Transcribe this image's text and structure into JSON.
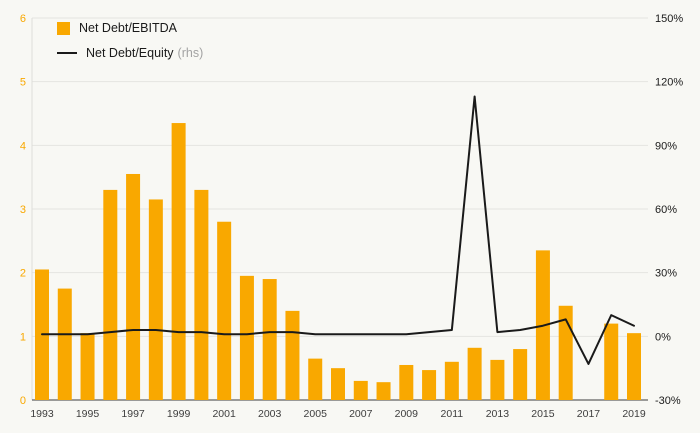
{
  "chart_data": {
    "type": "combo",
    "title": "",
    "background": "#F8F8F4",
    "legend_position": "top-left",
    "grid": "horizontal",
    "categories": [
      1993,
      1994,
      1995,
      1996,
      1997,
      1998,
      1999,
      2000,
      2001,
      2002,
      2003,
      2004,
      2005,
      2006,
      2007,
      2008,
      2009,
      2010,
      2011,
      2012,
      2013,
      2014,
      2015,
      2016,
      2017,
      2018,
      2019
    ],
    "x_tick_labels": [
      "1993",
      "1995",
      "1997",
      "1999",
      "2001",
      "2003",
      "2005",
      "2007",
      "2009",
      "2011",
      "2013",
      "2015",
      "2017",
      "2019"
    ],
    "series": [
      {
        "name": "Net Debt/EBITDA",
        "type": "bar",
        "axis": "left",
        "color": "#F9A800",
        "values": [
          2.05,
          1.75,
          1.05,
          3.3,
          3.55,
          3.15,
          4.35,
          3.3,
          2.8,
          1.95,
          1.9,
          1.4,
          0.65,
          0.5,
          0.3,
          0.28,
          0.55,
          0.47,
          0.6,
          0.82,
          0.63,
          0.8,
          2.35,
          1.48,
          null,
          1.2,
          1.05
        ]
      },
      {
        "name": "Net Debt/Equity",
        "axis_note": "(rhs)",
        "type": "line",
        "axis": "right",
        "color": "#1A1A1A",
        "unit": "%",
        "values": [
          1,
          1,
          1,
          2,
          3,
          3,
          2,
          2,
          1,
          1,
          2,
          2,
          1,
          1,
          1,
          1,
          1,
          2,
          3,
          113,
          2,
          3,
          5,
          8,
          -13,
          10,
          5
        ]
      }
    ],
    "left_axis": {
      "min": 0,
      "max": 6,
      "ticks": [
        0,
        1,
        2,
        3,
        4,
        5,
        6
      ],
      "tick_labels": [
        "0",
        "1",
        "2",
        "3",
        "4",
        "5",
        "6"
      ],
      "color": "#F9A800"
    },
    "right_axis": {
      "min": -30,
      "max": 150,
      "ticks": [
        -30,
        0,
        30,
        60,
        90,
        120,
        150
      ],
      "tick_labels": [
        "-30%",
        "0%",
        "30%",
        "60%",
        "90%",
        "120%",
        "150%"
      ],
      "color": "#1A1A1A"
    }
  }
}
